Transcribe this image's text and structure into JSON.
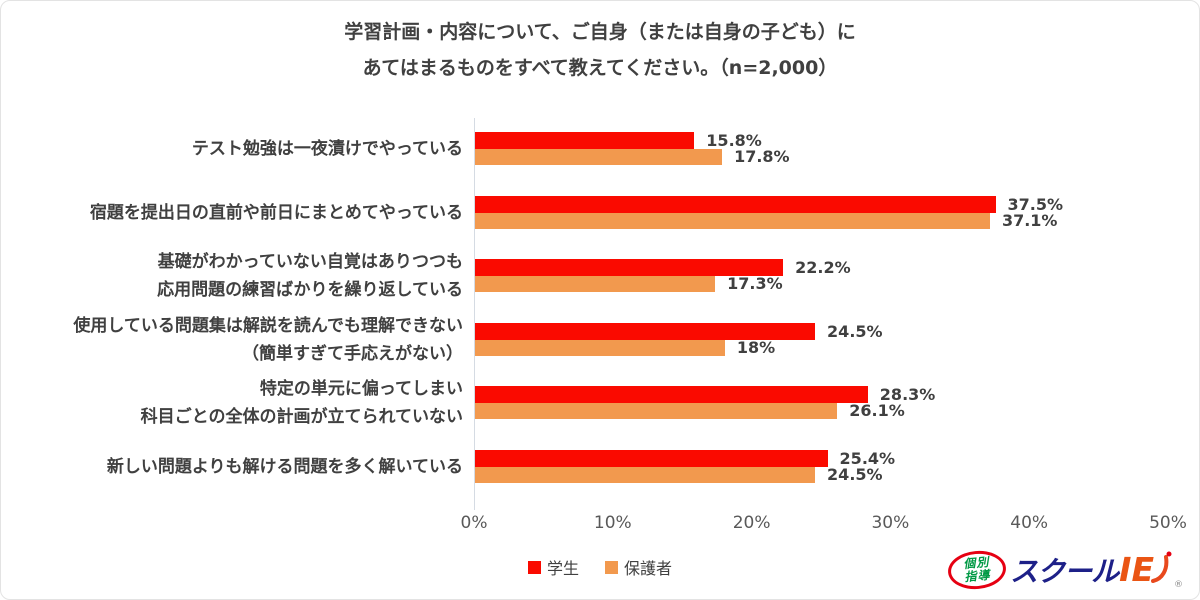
{
  "title": {
    "line1": "学習計画・内容について、ご自身（または自身の子ども）に",
    "line2": "あてはまるものをすべて教えてください。（n=2,000）"
  },
  "chart_data": {
    "type": "bar",
    "orientation": "horizontal",
    "categories": [
      [
        "テスト勉強は一夜漬けでやっている"
      ],
      [
        "宿題を提出日の直前や前日にまとめてやっている"
      ],
      [
        "基礎がわかっていない自覚はありつつも",
        "応用問題の練習ばかりを繰り返している"
      ],
      [
        "使用している問題集は解説を読んでも理解できない",
        "（簡単すぎて手応えがない）"
      ],
      [
        "特定の単元に偏ってしまい",
        "科目ごとの全体の計画が立てられていない"
      ],
      [
        "新しい問題よりも解ける問題を多く解いている"
      ]
    ],
    "series": [
      {
        "name": "学生",
        "color": "#fa0a00",
        "values": [
          15.8,
          37.5,
          22.2,
          24.5,
          28.3,
          25.4
        ],
        "labels": [
          "15.8%",
          "37.5%",
          "22.2%",
          "24.5%",
          "28.3%",
          "25.4%"
        ]
      },
      {
        "name": "保護者",
        "color": "#f2994e",
        "values": [
          17.8,
          37.1,
          17.3,
          18,
          26.1,
          24.5
        ],
        "labels": [
          "17.8%",
          "37.1%",
          "17.3%",
          "18%",
          "26.1%",
          "24.5%"
        ]
      }
    ],
    "x_axis": {
      "min": 0,
      "max": 50,
      "ticks": [
        "0%",
        "10%",
        "20%",
        "30%",
        "40%",
        "50%"
      ]
    },
    "legend_position": "bottom",
    "grid": false
  },
  "colors": {
    "students_bar": "#fa0a00",
    "parents_bar": "#f2994e",
    "text_dark": "#404040",
    "axis_text": "#595959",
    "axis_line": "#d5dbe3"
  },
  "logo": {
    "badge_line1": "個別",
    "badge_line2": "指導",
    "text_blue": "スクール",
    "text_orange": "IE",
    "registered_mark": "®"
  }
}
